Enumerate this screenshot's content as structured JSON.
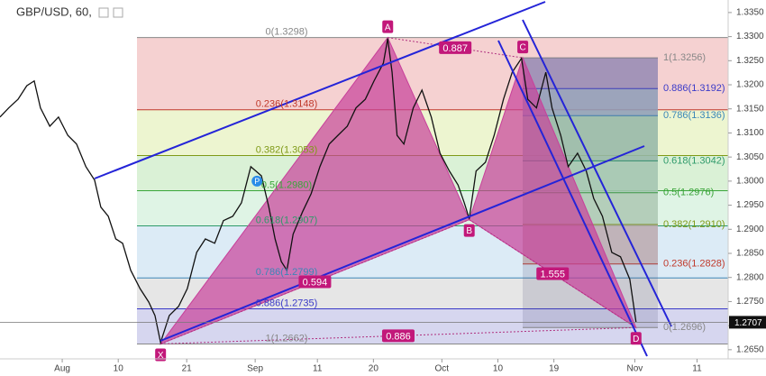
{
  "chart_data": {
    "type": "line",
    "title": "GBP/USD, 60,",
    "xlim": [
      203,
      320
    ],
    "ylim": [
      1.2631,
      1.3376
    ],
    "xticks": [
      {
        "value": 213,
        "label": "Aug"
      },
      {
        "value": 222,
        "label": "10"
      },
      {
        "value": 233,
        "label": "21"
      },
      {
        "value": 244,
        "label": "Sep"
      },
      {
        "value": 254,
        "label": "11"
      },
      {
        "value": 263,
        "label": "20"
      },
      {
        "value": 274,
        "label": "Oct"
      },
      {
        "value": 283,
        "label": "10"
      },
      {
        "value": 292,
        "label": "19"
      },
      {
        "value": 305,
        "label": "Nov"
      },
      {
        "value": 315,
        "label": "11"
      }
    ],
    "yticks": [
      {
        "value": 1.265,
        "label": "1.2650"
      },
      {
        "value": 1.27,
        "label": "1.2700"
      },
      {
        "value": 1.275,
        "label": "1.2750"
      },
      {
        "value": 1.28,
        "label": "1.2800"
      },
      {
        "value": 1.285,
        "label": "1.2850"
      },
      {
        "value": 1.29,
        "label": "1.2900"
      },
      {
        "value": 1.295,
        "label": "1.2950"
      },
      {
        "value": 1.3,
        "label": "1.3000"
      },
      {
        "value": 1.305,
        "label": "1.3050"
      },
      {
        "value": 1.31,
        "label": "1.3100"
      },
      {
        "value": 1.315,
        "label": "1.3150"
      },
      {
        "value": 1.32,
        "label": "1.3200"
      },
      {
        "value": 1.325,
        "label": "1.3250"
      },
      {
        "value": 1.33,
        "label": "1.3300"
      },
      {
        "value": 1.335,
        "label": "1.3350"
      }
    ],
    "x": [
      203,
      204.4,
      205.9,
      207.3,
      208.5,
      209.5,
      211,
      212.4,
      213.9,
      215.3,
      216.8,
      218.2,
      219.2,
      220.4,
      221.6,
      222.7,
      224,
      225.5,
      226.9,
      227.9,
      228.8,
      230.2,
      231.7,
      233.1,
      234.6,
      236,
      237.5,
      238.9,
      240.4,
      241.8,
      243.3,
      245,
      246.2,
      247.2,
      248.2,
      249.1,
      250.1,
      251.6,
      253,
      254.4,
      255.9,
      257.3,
      258.8,
      260.2,
      261.7,
      263.1,
      264.6,
      265.3,
      266,
      266.8,
      267.9,
      269.4,
      270.8,
      272.3,
      273.7,
      275.2,
      276.6,
      277.6,
      278.4,
      279.5,
      281,
      282.4,
      283.9,
      285.3,
      286.8,
      287.8,
      289.2,
      290.7,
      291.7,
      293.1,
      294.3,
      295.8,
      297.2,
      298.4,
      299.8,
      301.3,
      302.7,
      304.2,
      305.2
    ],
    "series": [
      {
        "color": "#111111",
        "values": [
          1.3133,
          1.3152,
          1.317,
          1.3198,
          1.3208,
          1.3152,
          1.3114,
          1.3133,
          1.3095,
          1.3077,
          1.303,
          1.3002,
          1.2946,
          1.2927,
          1.288,
          1.2871,
          1.2815,
          1.2777,
          1.2749,
          1.2721,
          1.2665,
          1.2721,
          1.274,
          1.2777,
          1.2852,
          1.288,
          1.2871,
          1.2918,
          1.2927,
          1.2955,
          1.303,
          1.3011,
          1.2946,
          1.288,
          1.2833,
          1.2815,
          1.289,
          1.2936,
          1.2974,
          1.303,
          1.3077,
          1.3095,
          1.3114,
          1.3152,
          1.317,
          1.3208,
          1.3245,
          1.3296,
          1.3226,
          1.3095,
          1.3077,
          1.3152,
          1.3189,
          1.3133,
          1.3058,
          1.3021,
          1.2992,
          1.2955,
          1.2922,
          1.3021,
          1.3039,
          1.3095,
          1.317,
          1.3226,
          1.3255,
          1.317,
          1.3152,
          1.3226,
          1.3152,
          1.3095,
          1.303,
          1.3058,
          1.3021,
          1.2964,
          1.2927,
          1.2852,
          1.2843,
          1.2796,
          1.2707
        ]
      }
    ],
    "last_price": 1.2707,
    "fib_left": {
      "levels": [
        {
          "value": 1.3298,
          "label": "0(1.3298)",
          "color": "#888888"
        },
        {
          "value": 1.3148,
          "label": "0.236(1.3148)",
          "color": "#c0392b"
        },
        {
          "value": 1.3053,
          "label": "0.382(1.3053)",
          "color": "#7f9a17"
        },
        {
          "value": 1.298,
          "label": "0.5(1.2980)",
          "color": "#3aa53a"
        },
        {
          "value": 1.2907,
          "label": "0.618(1.2907)",
          "color": "#2e9a6a"
        },
        {
          "value": 1.2799,
          "label": "0.786(1.2799)",
          "color": "#3b86b8"
        },
        {
          "value": 1.2735,
          "label": "0.886(1.2735)",
          "color": "#3a3ac8"
        },
        {
          "value": 1.2662,
          "label": "1(1.2662)",
          "color": "#888888"
        }
      ],
      "fills": [
        "#f3c9c9",
        "#eaf3c8",
        "#d3efcf",
        "#d9f2e0",
        "#d6e8f4",
        "#e2e2e2",
        "#cfcfec"
      ]
    },
    "fib_right": {
      "levels": [
        {
          "value": 1.3256,
          "label": "1(1.3256)",
          "color": "#888888"
        },
        {
          "value": 1.3192,
          "label": "0.886(1.3192)",
          "color": "#3a3ac8"
        },
        {
          "value": 1.3136,
          "label": "0.786(1.3136)",
          "color": "#3b86b8"
        },
        {
          "value": 1.3042,
          "label": "0.618(1.3042)",
          "color": "#2e9a6a"
        },
        {
          "value": 1.2976,
          "label": "0.5(1.2976)",
          "color": "#3aa53a"
        },
        {
          "value": 1.291,
          "label": "0.382(1.2910)",
          "color": "#7f9a17"
        },
        {
          "value": 1.2828,
          "label": "0.236(1.2828)",
          "color": "#c0392b"
        },
        {
          "value": 1.2696,
          "label": "0(1.2696)",
          "color": "#888888"
        }
      ],
      "fills": [
        "#a99bc4",
        "#9fb1c9",
        "#a8d1b5",
        "#b7e3bf",
        "#c7e6c4",
        "#d7c2be"
      ]
    },
    "pattern": {
      "color": "#c8409a",
      "points": [
        {
          "label": "X",
          "x": 228.8,
          "y": 1.2662
        },
        {
          "label": "A",
          "x": 265.3,
          "y": 1.3298
        },
        {
          "label": "B",
          "x": 278.4,
          "y": 1.292
        },
        {
          "label": "C",
          "x": 287,
          "y": 1.3256
        },
        {
          "label": "D",
          "x": 305.2,
          "y": 1.2696
        }
      ],
      "ratios": [
        0.887,
        0.594,
        1.555,
        0.886
      ]
    },
    "marker": {
      "label": "P",
      "x": 244.3,
      "y": 1.3
    }
  }
}
